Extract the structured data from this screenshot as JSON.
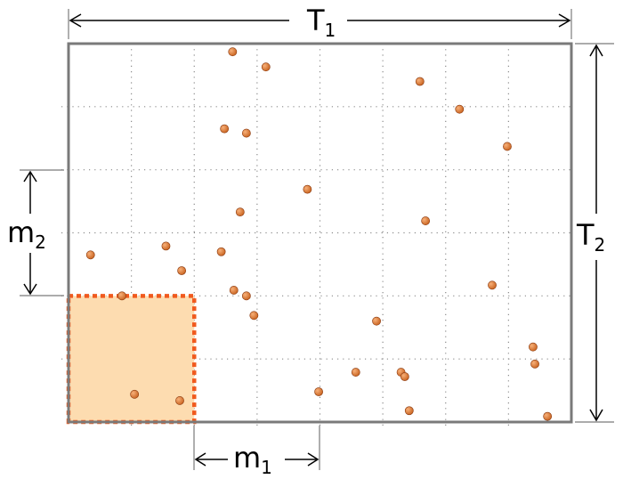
{
  "labels": {
    "t1_main": "T",
    "t1_sub": "1",
    "t2_main": "T",
    "t2_sub": "2",
    "m1_main": "m",
    "m1_sub": "1",
    "m2_main": "m",
    "m2_sub": "2"
  },
  "colors": {
    "frame": "#7a7a7a",
    "grid": "#8c8c8c",
    "window_fill": "#fddcb0",
    "window_border": "#f05a1e",
    "particle": "#c8621e",
    "particle_highlight": "#f7b079",
    "arrow": "#000000"
  },
  "domain": {
    "width": 8,
    "height": 6,
    "grid_step": 1,
    "window": {
      "x0": 0,
      "y0": 0,
      "width": 2,
      "height": 2
    },
    "m1_span": [
      2,
      4
    ],
    "m2_span": [
      2,
      4
    ],
    "particles": [
      [
        2.61,
        5.87
      ],
      [
        3.14,
        5.63
      ],
      [
        5.59,
        5.4
      ],
      [
        6.22,
        4.96
      ],
      [
        2.48,
        4.65
      ],
      [
        2.83,
        4.58
      ],
      [
        6.98,
        4.37
      ],
      [
        3.8,
        3.69
      ],
      [
        2.73,
        3.33
      ],
      [
        5.68,
        3.19
      ],
      [
        1.55,
        2.79
      ],
      [
        2.43,
        2.7
      ],
      [
        0.35,
        2.65
      ],
      [
        1.8,
        2.4
      ],
      [
        6.74,
        2.17
      ],
      [
        2.63,
        2.09
      ],
      [
        2.83,
        2.0
      ],
      [
        0.85,
        2.0
      ],
      [
        2.95,
        1.69
      ],
      [
        4.9,
        1.6
      ],
      [
        7.39,
        1.19
      ],
      [
        7.42,
        0.92
      ],
      [
        4.57,
        0.79
      ],
      [
        5.29,
        0.79
      ],
      [
        5.35,
        0.72
      ],
      [
        3.98,
        0.48
      ],
      [
        1.05,
        0.44
      ],
      [
        1.77,
        0.34
      ],
      [
        5.42,
        0.18
      ],
      [
        7.62,
        0.09
      ]
    ]
  }
}
